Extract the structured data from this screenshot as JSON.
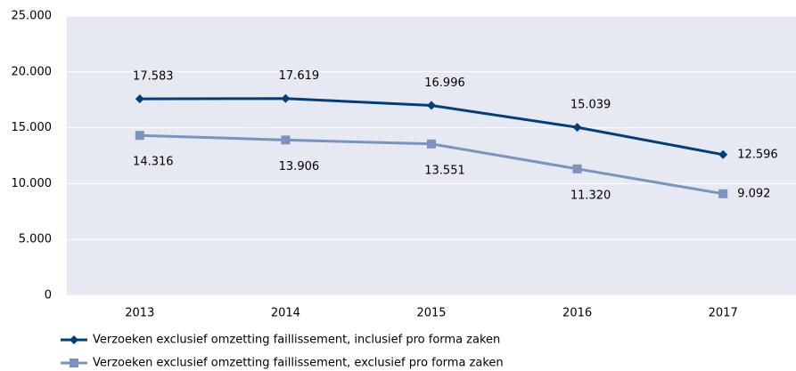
{
  "chart_data": {
    "type": "line",
    "categories": [
      "2013",
      "2014",
      "2015",
      "2016",
      "2017"
    ],
    "series": [
      {
        "name": "Verzoeken exclusief omzetting faillissement, inclusief pro forma zaken",
        "color": "#003f7a",
        "marker": "diamond",
        "values": [
          17583,
          17619,
          16996,
          15039,
          12596
        ],
        "value_labels": [
          "17.583",
          "17.619",
          "16.996",
          "15.039",
          "12.596"
        ]
      },
      {
        "name": "Verzoeken exclusief omzetting faillissement, exclusief pro forma zaken",
        "color": "#7b93bf",
        "marker": "square",
        "values": [
          14316,
          13906,
          13551,
          11320,
          9092
        ],
        "value_labels": [
          "14.316",
          "13.906",
          "13.551",
          "11.320",
          "9.092"
        ]
      }
    ],
    "ylim": [
      0,
      25000
    ],
    "yticks": [
      0,
      {
        "value": 5000,
        "label": "5.000"
      },
      {
        "value": 10000,
        "label": "10.000"
      },
      {
        "value": 15000,
        "label": "15.000"
      },
      {
        "value": 20000,
        "label": "20.000"
      },
      {
        "value": 25000,
        "label": "25.000"
      }
    ],
    "grid": true,
    "legend": "bottom"
  }
}
